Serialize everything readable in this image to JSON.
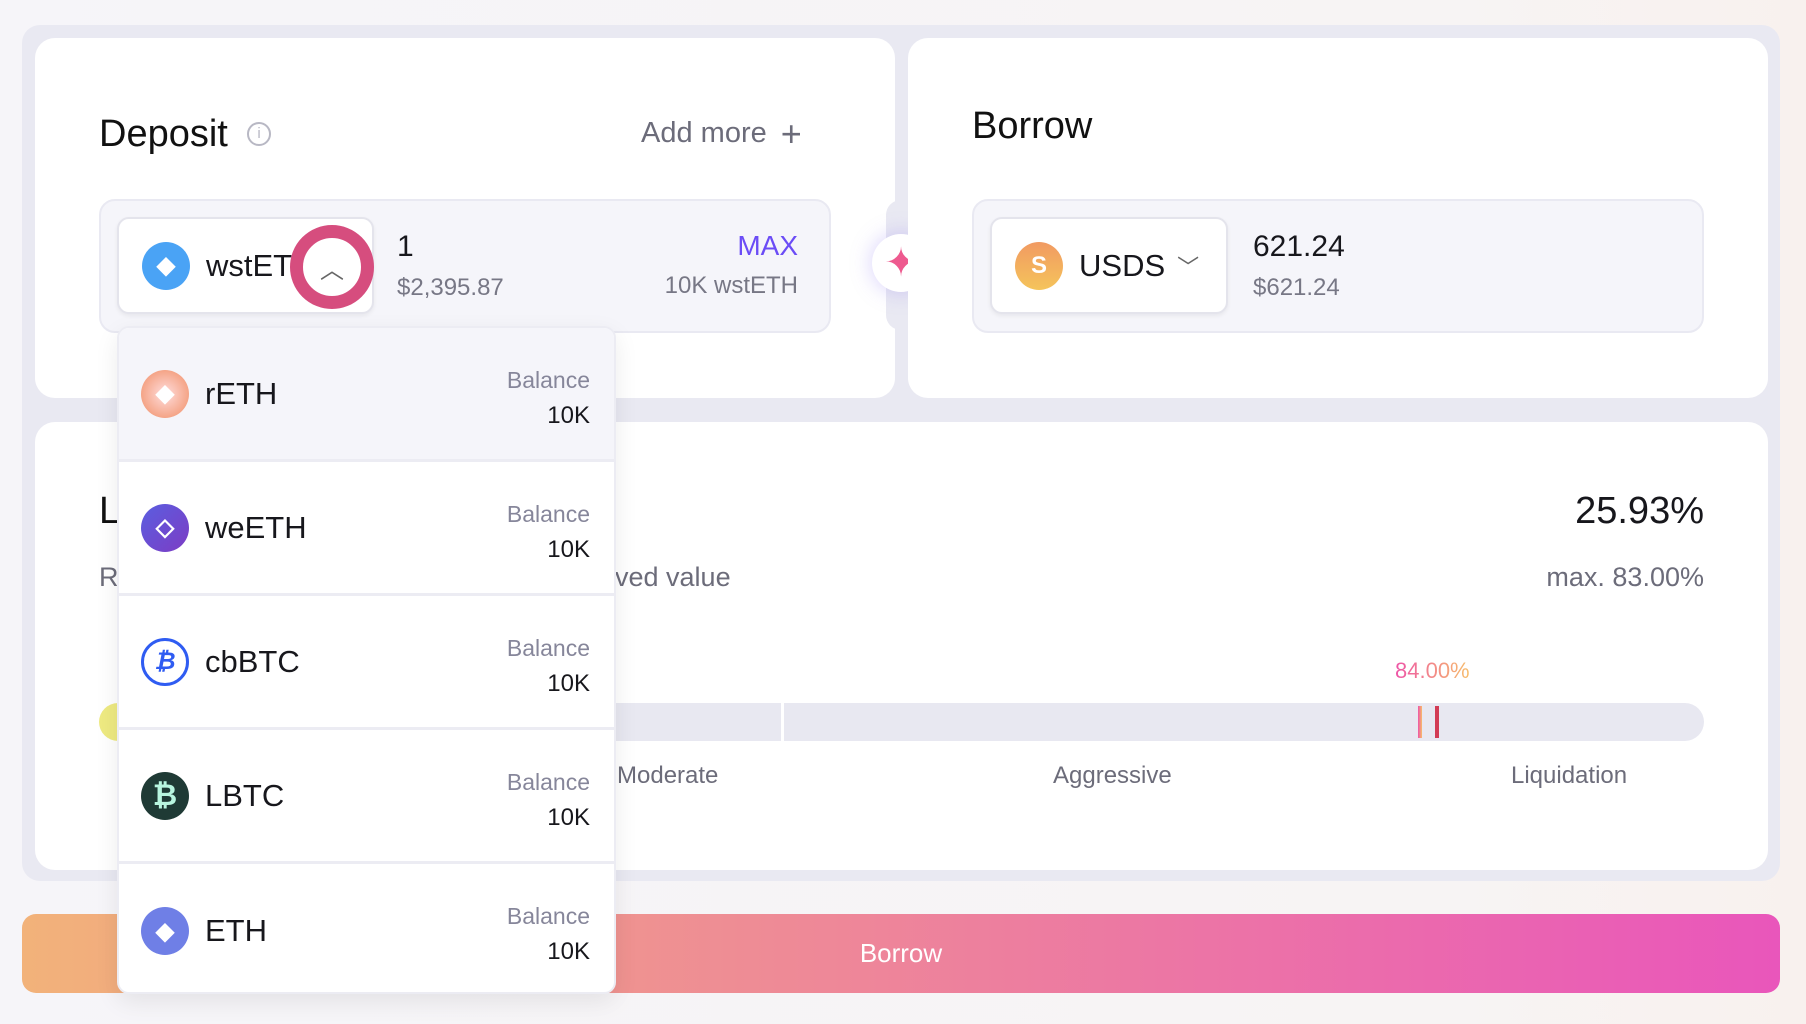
{
  "deposit": {
    "title": "Deposit",
    "info_icon": "info-icon",
    "add_more": "Add more",
    "add_icon": "plus-icon",
    "token": "wstETH",
    "amount": "1",
    "usd": "$2,395.87",
    "max": "MAX",
    "balance": "10K wstETH"
  },
  "borrow": {
    "title": "Borrow",
    "token": "USDS",
    "amount": "621.24",
    "usd": "$621.24"
  },
  "ltv": {
    "title_fragment": "L",
    "sub_fragment_left": "R",
    "sub_fragment_right": "ved value",
    "value": "25.93%",
    "max": "max. 83.00%",
    "liq_marker": "84.00%",
    "labels": [
      "Moderate",
      "Aggressive",
      "Liquidation"
    ]
  },
  "dropdown": {
    "items": [
      {
        "token": "rETH",
        "balance_label": "Balance",
        "balance": "10K"
      },
      {
        "token": "weETH",
        "balance_label": "Balance",
        "balance": "10K"
      },
      {
        "token": "cbBTC",
        "balance_label": "Balance",
        "balance": "10K"
      },
      {
        "token": "LBTC",
        "balance_label": "Balance",
        "balance": "10K"
      },
      {
        "token": "ETH",
        "balance_label": "Balance",
        "balance": "10K"
      }
    ]
  },
  "cta": {
    "label": "Borrow"
  },
  "colors": {
    "accent": "#6b4cf6",
    "highlight": "#d64d7e",
    "gradient_start": "#f2b27a",
    "gradient_end": "#e956bb"
  }
}
